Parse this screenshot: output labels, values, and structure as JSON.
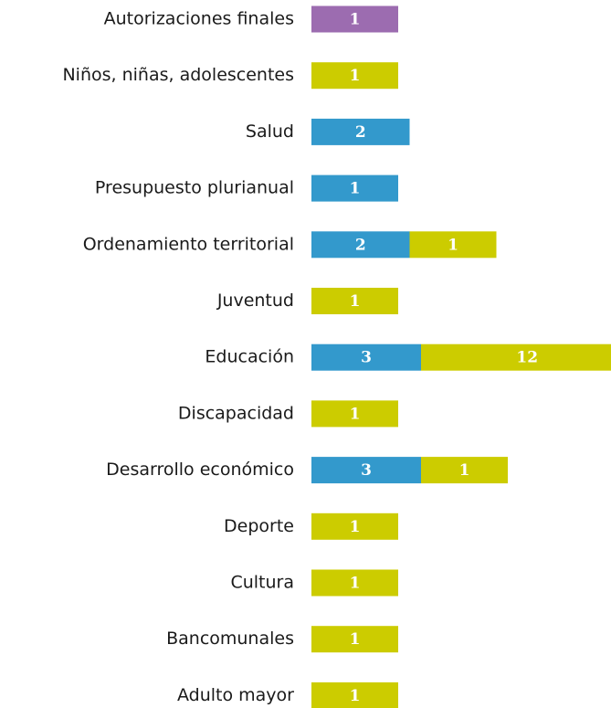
{
  "chart_data": {
    "type": "stacked-barh",
    "categories": [
      "Autorizaciones finales",
      "Niños, niñas, adolescentes",
      "Salud",
      "Presupuesto plurianual",
      "Ordenamiento territorial",
      "Juventud",
      "Educación",
      "Discapacidad",
      "Desarrollo económico",
      "Deporte",
      "Cultura",
      "Bancomunales",
      "Adulto mayor"
    ],
    "series": [
      {
        "color": "#9c6cb0",
        "values": [
          1,
          null,
          null,
          null,
          null,
          null,
          null,
          null,
          null,
          null,
          null,
          null,
          null
        ]
      },
      {
        "color": "#3399cc",
        "values": [
          null,
          null,
          2,
          1,
          2,
          null,
          3,
          null,
          3,
          null,
          null,
          null,
          null
        ]
      },
      {
        "color": "#cccc00",
        "values": [
          null,
          1,
          null,
          null,
          1,
          1,
          12,
          1,
          1,
          1,
          1,
          1,
          1
        ]
      }
    ]
  }
}
